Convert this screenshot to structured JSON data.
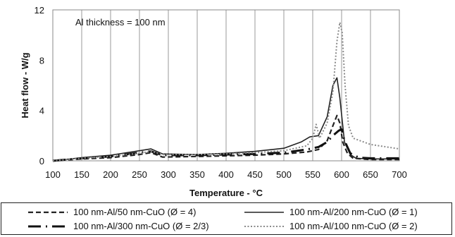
{
  "chart_data": {
    "type": "line",
    "title": "",
    "annotation": "Al thickness = 100 nm",
    "xlabel": "Temperature - °C",
    "ylabel": "Heat flow - W/g",
    "xlim": [
      100,
      700
    ],
    "ylim": [
      0,
      12
    ],
    "xticks": [
      100,
      150,
      200,
      250,
      300,
      350,
      400,
      450,
      500,
      550,
      600,
      650,
      700
    ],
    "yticks": [
      0,
      4,
      8,
      12
    ],
    "grid": "vertical",
    "legend": "bottom",
    "series": [
      {
        "name": "100 nm-Al/50 nm-CuO (Ø = 4)",
        "style": "dashed",
        "color": "#222222",
        "x": [
          100,
          150,
          200,
          250,
          270,
          290,
          350,
          400,
          450,
          500,
          540,
          560,
          575,
          585,
          592,
          597,
          602,
          610,
          620,
          650,
          700
        ],
        "y": [
          0.0,
          0.15,
          0.25,
          0.5,
          0.65,
          0.3,
          0.35,
          0.4,
          0.45,
          0.55,
          0.7,
          0.9,
          1.6,
          2.8,
          3.6,
          3.0,
          1.5,
          0.6,
          0.2,
          0.1,
          0.1
        ]
      },
      {
        "name": "100 nm-Al/200 nm-CuO (Ø = 1)",
        "style": "solid",
        "color": "#222222",
        "x": [
          100,
          150,
          200,
          250,
          270,
          290,
          350,
          400,
          450,
          500,
          530,
          545,
          560,
          575,
          585,
          592,
          597,
          605,
          615,
          625,
          650,
          700
        ],
        "y": [
          0.0,
          0.25,
          0.45,
          0.8,
          0.95,
          0.55,
          0.5,
          0.6,
          0.75,
          1.0,
          1.5,
          1.9,
          2.0,
          3.5,
          6.0,
          6.6,
          5.0,
          1.5,
          0.5,
          0.2,
          0.15,
          0.15
        ]
      },
      {
        "name": "100 nm-Al/300 nm-CuO (Ø = 2/3)",
        "style": "dashdot",
        "color": "#111111",
        "x": [
          100,
          150,
          200,
          250,
          270,
          290,
          350,
          400,
          450,
          500,
          540,
          560,
          575,
          585,
          595,
          600,
          605,
          615,
          630,
          650,
          700
        ],
        "y": [
          0.0,
          0.2,
          0.35,
          0.65,
          0.75,
          0.45,
          0.45,
          0.5,
          0.55,
          0.65,
          0.9,
          1.1,
          1.5,
          2.0,
          2.4,
          2.5,
          1.6,
          0.6,
          0.25,
          0.2,
          0.2
        ]
      },
      {
        "name": "100 nm-Al/100 nm-CuO (Ø = 2)",
        "style": "dotted",
        "color": "#8a8a8a",
        "x": [
          100,
          150,
          200,
          250,
          270,
          290,
          350,
          400,
          450,
          500,
          540,
          550,
          556,
          562,
          575,
          585,
          592,
          597,
          601,
          606,
          612,
          620,
          650,
          700
        ],
        "y": [
          0.0,
          0.2,
          0.35,
          0.6,
          0.75,
          0.5,
          0.5,
          0.55,
          0.65,
          0.8,
          1.2,
          1.8,
          2.9,
          1.8,
          3.0,
          5.5,
          9.5,
          11.0,
          10.2,
          6.0,
          2.8,
          1.8,
          1.3,
          0.95
        ]
      }
    ]
  },
  "legend_items": [
    "100 nm-Al/50 nm-CuO (Ø = 4)",
    "100 nm-Al/200 nm-CuO (Ø = 1)",
    "100 nm-Al/300 nm-CuO (Ø = 2/3)",
    "100 nm-Al/100 nm-CuO (Ø = 2)"
  ]
}
